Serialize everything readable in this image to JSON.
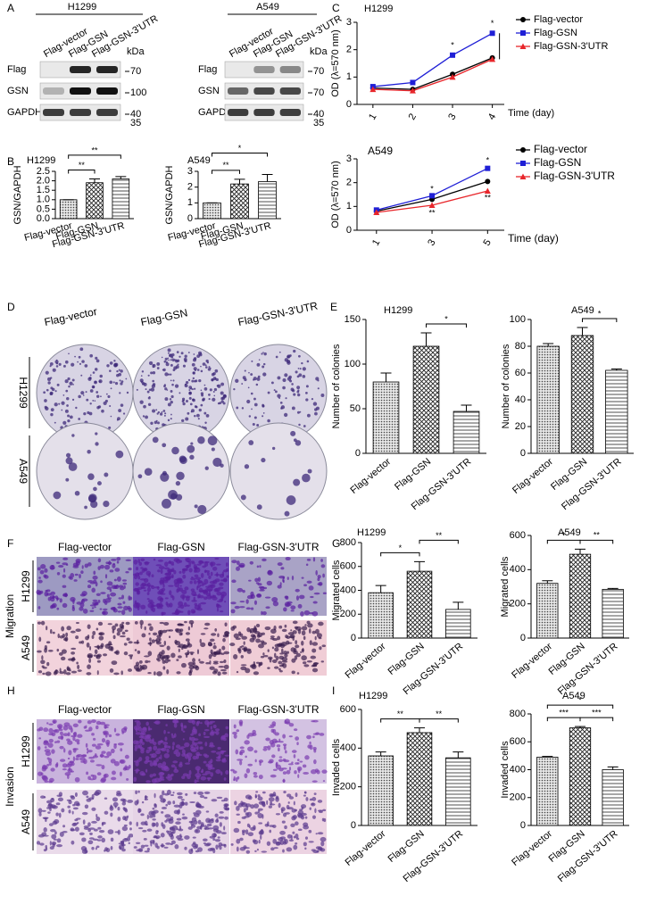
{
  "panel_labels": [
    "A",
    "B",
    "C",
    "D",
    "E",
    "F",
    "G",
    "H",
    "I"
  ],
  "blots": [
    {
      "cell_line": "H1299",
      "lanes": [
        "Flag-vector",
        "Flag-GSN",
        "Flag-GSN-3'UTR"
      ],
      "unit": "kDa",
      "rows": [
        "Flag",
        "GSN",
        "GAPDH"
      ],
      "markers": [
        "70",
        "100",
        "40",
        "35"
      ]
    },
    {
      "cell_line": "A549",
      "lanes": [
        "Flag-vector",
        "Flag-GSN",
        "Flag-GSN-3'UTR"
      ],
      "unit": "kDa",
      "rows": [
        "Flag",
        "GSN",
        "GAPDH"
      ],
      "markers": [
        "70",
        "70",
        "40",
        "35"
      ]
    }
  ],
  "colony_assay": {
    "columns": [
      "Flag-vector",
      "Flag-GSN",
      "Flag-GSN-3'UTR"
    ],
    "rows": [
      "H1299",
      "A549"
    ]
  },
  "migration_assay": {
    "title": "Migration",
    "columns": [
      "Flag-vector",
      "Flag-GSN",
      "Flag-GSN-3'UTR"
    ],
    "rows": [
      "H1299",
      "A549"
    ]
  },
  "invasion_assay": {
    "title": "Invasion",
    "columns": [
      "Flag-vector",
      "Flag-GSN",
      "Flag-GSN-3'UTR"
    ],
    "rows": [
      "H1299",
      "A549"
    ]
  },
  "chart_data": [
    {
      "type": "bar",
      "title": "H1299",
      "y_label": "GSN/GAPDH",
      "categories": [
        "Flag-vector",
        "Flag-GSN",
        "Flag-GSN-3'UTR"
      ],
      "values": [
        1.0,
        1.9,
        2.1
      ],
      "errors": [
        0,
        0.2,
        0.12
      ],
      "ylim": [
        0,
        2.5
      ],
      "yticks": [
        {
          "value": 0,
          "label": "0.0"
        },
        0.5,
        {
          "value": 1,
          "label": "1.0"
        },
        1.5,
        {
          "value": 2,
          "label": "2.0"
        },
        2.5
      ],
      "annotations": [
        "**",
        "**"
      ]
    },
    {
      "type": "bar",
      "title": "A549",
      "y_label": "GSN/GAPDH",
      "categories": [
        "Flag-vector",
        "Flag-GSN",
        "Flag-GSN-3'UTR"
      ],
      "values": [
        1.0,
        2.2,
        2.35
      ],
      "errors": [
        0,
        0.3,
        0.45
      ],
      "ylim": [
        0,
        3
      ],
      "yticks": [
        0,
        1,
        2,
        3
      ],
      "annotations": [
        "**",
        "*"
      ]
    },
    {
      "type": "line",
      "title": "H1299",
      "y_label": "OD (λ=570 nm)",
      "x_label": "Time (day)",
      "x": [
        1,
        2,
        3,
        4
      ],
      "xlim": [
        0.6,
        4.3
      ],
      "xticks": [
        1,
        2,
        3,
        4
      ],
      "ylim": [
        0,
        3
      ],
      "yticks": [
        0,
        1,
        2,
        3
      ],
      "legend": "right",
      "series": [
        {
          "name": "Flag-vector",
          "color": "#000000",
          "values": [
            0.6,
            0.55,
            1.1,
            1.7
          ]
        },
        {
          "name": "Flag-GSN",
          "color": "#1f1fd6",
          "values": [
            0.65,
            0.8,
            1.8,
            2.6
          ]
        },
        {
          "name": "Flag-GSN-3'UTR",
          "color": "#e8262b",
          "values": [
            0.55,
            0.5,
            1.0,
            1.65
          ]
        }
      ],
      "annotations": [
        "*",
        "*"
      ]
    },
    {
      "type": "line",
      "title": "A549",
      "y_label": "OD (λ=570 nm)",
      "x_label": "Time (day)",
      "x": [
        1,
        3,
        5
      ],
      "xlim": [
        0.3,
        5.6
      ],
      "xticks": [
        1,
        3,
        5
      ],
      "ylim": [
        0,
        3
      ],
      "yticks": [
        0,
        1,
        2,
        3
      ],
      "legend": "right",
      "series": [
        {
          "name": "Flag-vector",
          "color": "#000000",
          "values": [
            0.8,
            1.3,
            2.05
          ]
        },
        {
          "name": "Flag-GSN",
          "color": "#1f1fd6",
          "values": [
            0.85,
            1.45,
            2.6
          ]
        },
        {
          "name": "Flag-GSN-3'UTR",
          "color": "#e8262b",
          "values": [
            0.75,
            1.05,
            1.65
          ]
        }
      ],
      "annotations": [
        "*",
        "**",
        "*",
        "**"
      ]
    },
    {
      "type": "bar",
      "title": "H1299",
      "y_label": "Number of colonies",
      "categories": [
        "Flag-vector",
        "Flag-GSN",
        "Flag-GSN-3'UTR"
      ],
      "values": [
        80,
        120,
        47
      ],
      "errors": [
        10,
        15,
        7
      ],
      "ylim": [
        0,
        150
      ],
      "yticks": [
        0,
        50,
        100,
        150
      ],
      "annotations": [
        "*"
      ]
    },
    {
      "type": "bar",
      "title": "A549",
      "y_label": "Number of colonies",
      "categories": [
        "Flag-vector",
        "Flag-GSN",
        "Flag-GSN-3'UTR"
      ],
      "values": [
        80,
        88,
        62
      ],
      "errors": [
        2,
        6,
        1
      ],
      "ylim": [
        0,
        100
      ],
      "yticks": [
        0,
        20,
        40,
        60,
        80,
        100
      ],
      "annotations": [
        "*"
      ]
    },
    {
      "type": "bar",
      "title": "H1299",
      "y_label": "Migrated cells",
      "categories": [
        "Flag-vector",
        "Flag-GSN",
        "Flag-GSN-3'UTR"
      ],
      "values": [
        380,
        560,
        240
      ],
      "errors": [
        60,
        80,
        60
      ],
      "ylim": [
        0,
        800
      ],
      "yticks": [
        0,
        200,
        400,
        600,
        800
      ],
      "annotations": [
        "*",
        "**"
      ]
    },
    {
      "type": "bar",
      "title": "A549",
      "y_label": "Migrated cells",
      "categories": [
        "Flag-vector",
        "Flag-GSN",
        "Flag-GSN-3'UTR"
      ],
      "values": [
        320,
        490,
        285
      ],
      "errors": [
        15,
        30,
        5
      ],
      "ylim": [
        0,
        600
      ],
      "yticks": [
        0,
        200,
        400,
        600
      ],
      "annotations": [
        "*",
        "**"
      ]
    },
    {
      "type": "bar",
      "title": "H1299",
      "y_label": "Invaded cells",
      "categories": [
        "Flag-vector",
        "Flag-GSN",
        "Flag-GSN-3'UTR"
      ],
      "values": [
        360,
        480,
        350
      ],
      "errors": [
        20,
        25,
        30
      ],
      "ylim": [
        0,
        600
      ],
      "yticks": [
        0,
        200,
        400,
        600
      ],
      "annotations": [
        "**",
        "**"
      ]
    },
    {
      "type": "bar",
      "title": "A549",
      "y_label": "Invaded cells",
      "categories": [
        "Flag-vector",
        "Flag-GSN",
        "Flag-GSN-3'UTR"
      ],
      "values": [
        490,
        700,
        400
      ],
      "errors": [
        5,
        10,
        20
      ],
      "ylim": [
        0,
        800
      ],
      "yticks": [
        0,
        200,
        400,
        600,
        800
      ],
      "annotations": [
        "***",
        "***",
        "*"
      ]
    }
  ]
}
